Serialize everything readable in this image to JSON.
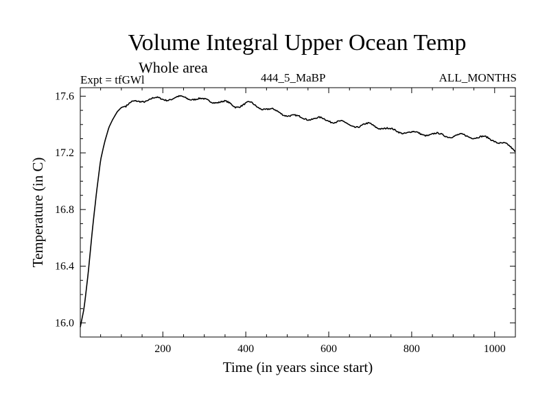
{
  "header": {
    "title": "Volume Integral Upper Ocean Temp",
    "subtitle": "Whole area",
    "experiment": "Expt = tfGWl",
    "period": "444_5_MaBP",
    "months": "ALL_MONTHS"
  },
  "chart_data": {
    "type": "line",
    "title": "Volume Integral Upper Ocean Temp",
    "xlabel": "Time (in years since start)",
    "ylabel": "Temperature (in C)",
    "xlim": [
      1,
      1050
    ],
    "ylim": [
      15.9,
      17.66
    ],
    "xticks": [
      200,
      400,
      600,
      800,
      1000
    ],
    "yticks": [
      16.0,
      16.4,
      16.8,
      17.2,
      17.6
    ],
    "ytick_labels": [
      "16.0",
      "16.4",
      "16.8",
      "17.2",
      "17.6"
    ],
    "grid": false,
    "series": [
      {
        "name": "Volume Integral Upper Ocean Temp",
        "color": "#000000",
        "x": [
          1,
          10,
          20,
          30,
          40,
          50,
          60,
          70,
          80,
          90,
          100,
          110,
          125,
          150,
          175,
          200,
          225,
          250,
          275,
          300,
          325,
          350,
          375,
          400,
          410,
          425,
          450,
          475,
          500,
          525,
          550,
          575,
          600,
          625,
          650,
          675,
          700,
          725,
          750,
          775,
          800,
          825,
          850,
          875,
          900,
          925,
          950,
          975,
          1000,
          1025,
          1040,
          1050
        ],
        "values": [
          15.97,
          16.1,
          16.35,
          16.65,
          16.92,
          17.15,
          17.28,
          17.38,
          17.44,
          17.49,
          17.52,
          17.53,
          17.55,
          17.57,
          17.58,
          17.58,
          17.585,
          17.59,
          17.585,
          17.57,
          17.565,
          17.555,
          17.53,
          17.545,
          17.55,
          17.53,
          17.51,
          17.49,
          17.47,
          17.45,
          17.445,
          17.44,
          17.43,
          17.42,
          17.395,
          17.39,
          17.4,
          17.38,
          17.36,
          17.35,
          17.34,
          17.335,
          17.33,
          17.325,
          17.32,
          17.32,
          17.315,
          17.305,
          17.29,
          17.26,
          17.23,
          17.21
        ]
      }
    ]
  }
}
